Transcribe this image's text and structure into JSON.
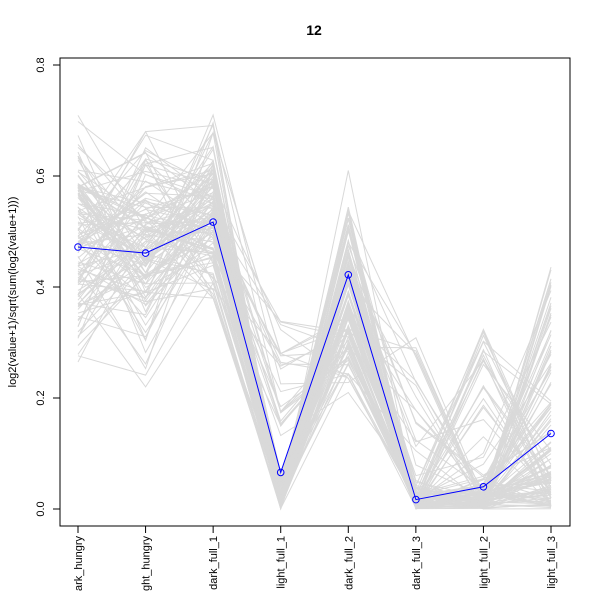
{
  "chart_data": {
    "type": "line",
    "title": "12",
    "xlabel": "",
    "ylabel": "log2(value+1)/sqrt(sum(log2(value+1)))",
    "categories": [
      "dark_hungry",
      "light_hungry",
      "dark_full_1",
      "light_full_1",
      "dark_full_2",
      "dark_full_3",
      "light_full_2",
      "light_full_3"
    ],
    "category_labels_visible": [
      "ark_hungry",
      "ght_hungry",
      "dark_full_1",
      "light_full_1",
      "dark_full_2",
      "dark_full_3",
      "light_full_2",
      "light_full_3"
    ],
    "ylim": [
      0,
      0.8
    ],
    "yticks": [
      "0.0",
      "0.2",
      "0.4",
      "0.6",
      "0.8"
    ],
    "grid": false,
    "background_lines_color": "#d9d9d9",
    "highlight_color": "#0000ff",
    "highlight_series": {
      "name": "",
      "values": [
        0.472,
        0.461,
        0.517,
        0.066,
        0.422,
        0.017,
        0.04,
        0.136
      ]
    },
    "background_series_count": 130
  }
}
